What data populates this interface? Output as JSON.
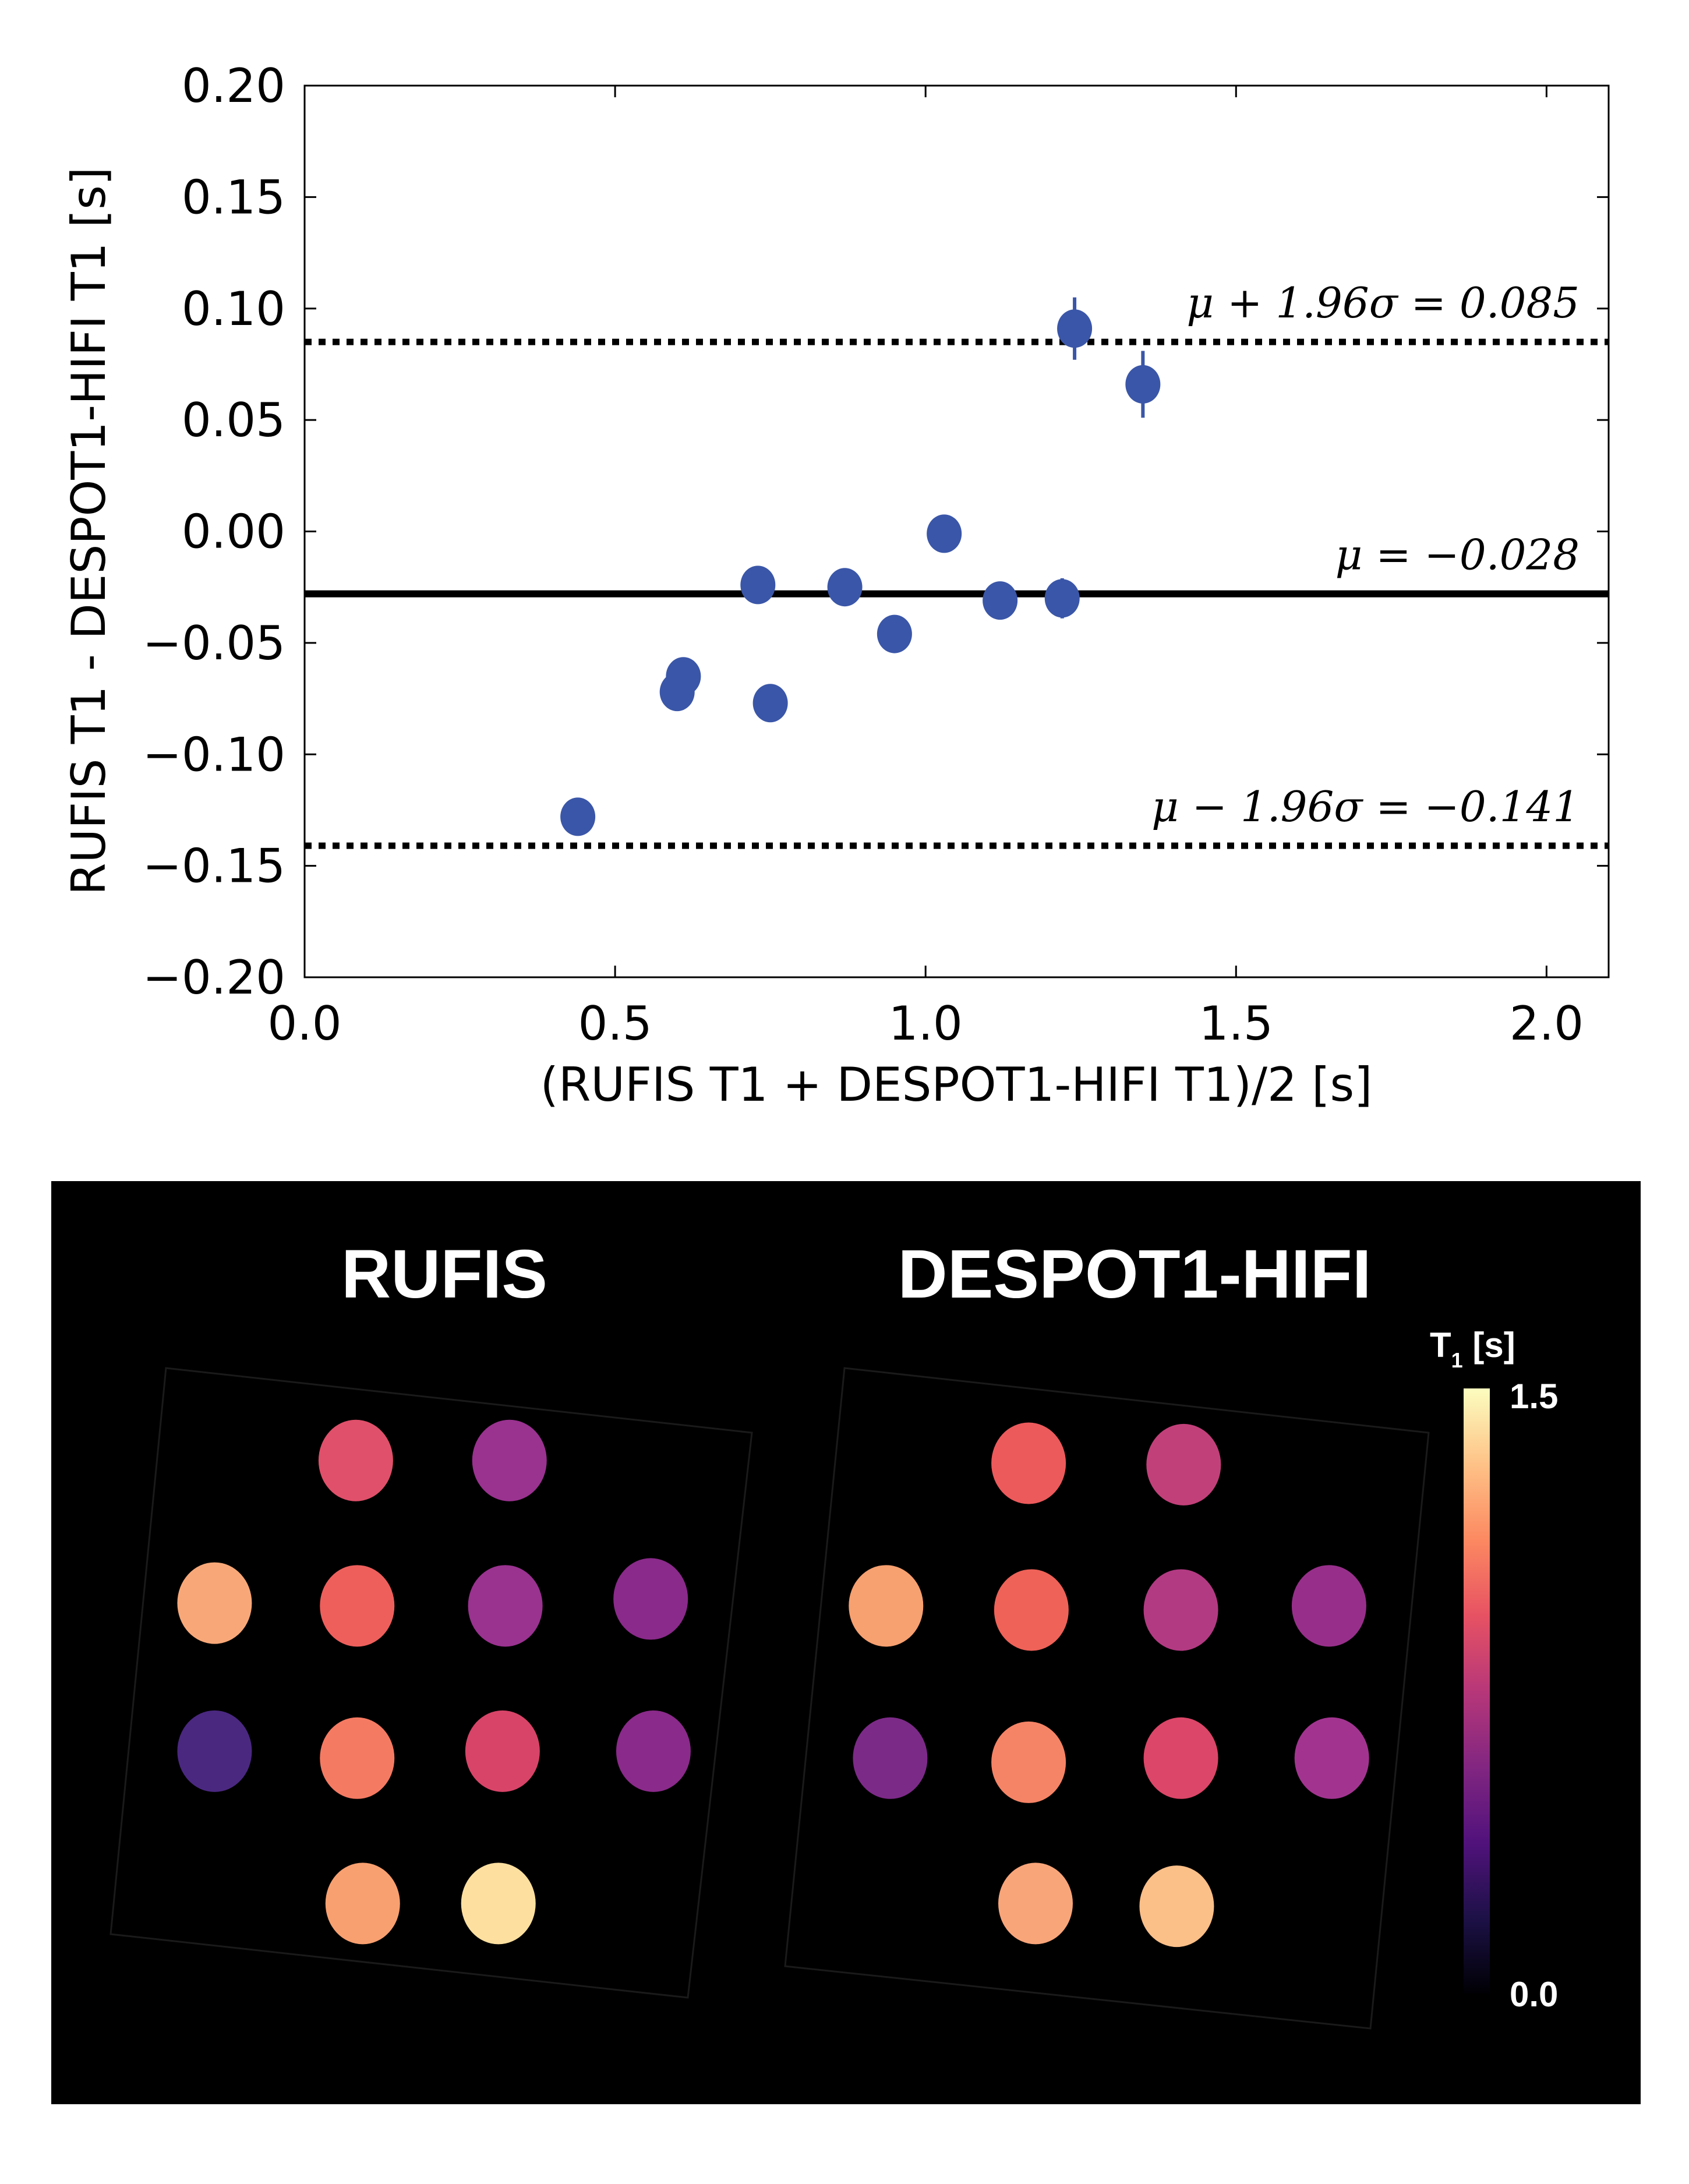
{
  "chart_data": {
    "type": "scatter",
    "xlabel": "(RUFIS T1 + DESPOT1-HIFI T1)/2 [s]",
    "ylabel": "RUFIS T1 - DESPOT1-HIFI T1 [s]",
    "xlim": [
      0.0,
      2.1
    ],
    "ylim": [
      -0.2,
      0.2
    ],
    "xticks": [
      "0.0",
      "0.5",
      "1.0",
      "1.5",
      "2.0"
    ],
    "xtick_values": [
      0.0,
      0.5,
      1.0,
      1.5,
      2.0
    ],
    "yticks": [
      "0.20",
      "0.15",
      "0.10",
      "0.05",
      "0.00",
      "−0.05",
      "−0.10",
      "−0.15",
      "−0.20"
    ],
    "ytick_values": [
      0.2,
      0.15,
      0.1,
      0.05,
      0.0,
      -0.05,
      -0.1,
      -0.15,
      -0.2
    ],
    "marker_color": "#3a56a8",
    "points": [
      {
        "x": 0.44,
        "y": -0.128,
        "err": 0.002
      },
      {
        "x": 0.6,
        "y": -0.072,
        "err": 0.002
      },
      {
        "x": 0.61,
        "y": -0.065,
        "err": 0.002
      },
      {
        "x": 0.73,
        "y": -0.024,
        "err": 0.003
      },
      {
        "x": 0.75,
        "y": -0.077,
        "err": 0.002
      },
      {
        "x": 0.87,
        "y": -0.025,
        "err": 0.006
      },
      {
        "x": 0.95,
        "y": -0.046,
        "err": 0.003
      },
      {
        "x": 1.03,
        "y": -0.001,
        "err": 0.003
      },
      {
        "x": 1.12,
        "y": -0.031,
        "err": 0.008
      },
      {
        "x": 1.22,
        "y": -0.03,
        "err": 0.009
      },
      {
        "x": 1.24,
        "y": 0.091,
        "err": 0.014
      },
      {
        "x": 1.35,
        "y": 0.066,
        "err": 0.015
      }
    ],
    "lines": [
      {
        "name": "upper-limit",
        "y": 0.085,
        "style": "dotted",
        "label": "μ + 1.96σ = 0.085"
      },
      {
        "name": "mean",
        "y": -0.028,
        "style": "solid",
        "label": "μ = −0.028"
      },
      {
        "name": "lower-limit",
        "y": -0.141,
        "style": "dotted",
        "label": "μ − 1.96σ = −0.141"
      }
    ]
  },
  "maps": {
    "titles": [
      "RUFIS",
      "DESPOT1-HIFI"
    ],
    "colorbar": {
      "label_main": "T",
      "label_sub": "1",
      "label_unit": " [s]",
      "max": "1.5",
      "min": "0.0",
      "colormap": [
        "#000004",
        "#1d1147",
        "#51127c",
        "#822681",
        "#b73779",
        "#e75263",
        "#fc8961",
        "#fec287",
        "#fcfdbf"
      ]
    },
    "rufis_colors": [
      "#e0506a",
      "#9a3290",
      "#f8a878",
      "#ee5f5c",
      "#9a3290",
      "#8a2a8a",
      "#4a2880",
      "#f57a62",
      "#d84468",
      "#8a2a8a",
      "#f9a070",
      "#fde0a0"
    ],
    "despot_colors": [
      "#ec5a5c",
      "#c2407a",
      "#f7a070",
      "#ee6258",
      "#b23a82",
      "#972f8a",
      "#7c2a88",
      "#f58466",
      "#dc4668",
      "#a23490",
      "#f9a57a",
      "#fbbf88"
    ]
  }
}
